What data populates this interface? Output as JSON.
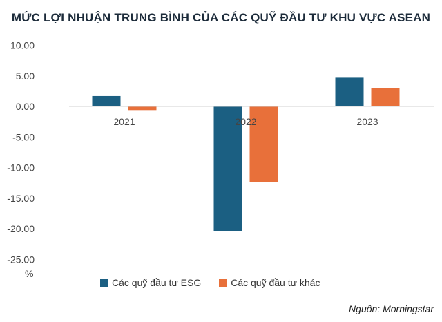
{
  "chart_data": {
    "type": "bar",
    "title": "MỨC LỢI NHUẬN TRUNG BÌNH CỦA CÁC QUỸ ĐẦU TƯ KHU VỰC ASEAN",
    "categories": [
      "2021",
      "2022",
      "2023"
    ],
    "series": [
      {
        "name": "Các quỹ đầu tư ESG",
        "color": "#1b5f82",
        "values": [
          1.7,
          -20.4,
          4.7
        ]
      },
      {
        "name": "Các quỹ đầu tư khác",
        "color": "#e8703a",
        "values": [
          -0.6,
          -12.4,
          3.0
        ]
      }
    ],
    "ylabel": "%",
    "ylim": [
      -25,
      10
    ],
    "yticks": [
      "10.00",
      "5.00",
      "0.00",
      "-5.00",
      "-10.00",
      "-15.00",
      "-20.00",
      "-25.00"
    ],
    "ytick_values": [
      10,
      5,
      0,
      -5,
      -10,
      -15,
      -20,
      -25
    ],
    "legend": "bottom",
    "grid": false
  },
  "source": "Nguồn: Morningstar"
}
